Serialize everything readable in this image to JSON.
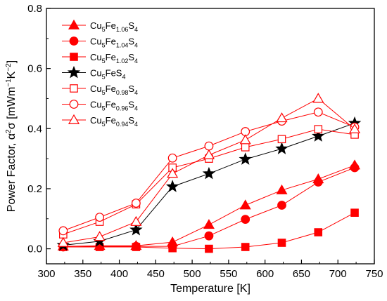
{
  "chart_data": {
    "type": "line",
    "xlabel": "Temperature [K]",
    "ylabel_parts": {
      "main": "Power Factor, α",
      "exp1": "2",
      "mid": "σ [mWm",
      "exp2": "−1",
      "k": "K",
      "exp3": "−2",
      "end": "]"
    },
    "xlim": [
      300,
      750
    ],
    "ylim": [
      -0.05,
      0.8
    ],
    "xticks": [
      300,
      350,
      400,
      450,
      500,
      550,
      600,
      650,
      700,
      750
    ],
    "xtick_labels": [
      "300",
      "350",
      "400",
      "450",
      "500",
      "550",
      "600",
      "650",
      "700",
      "750"
    ],
    "yticks": [
      0.0,
      0.2,
      0.4,
      0.6,
      0.8
    ],
    "ytick_labels": [
      "0.0",
      "0.2",
      "0.4",
      "0.6",
      "0.8"
    ],
    "grid": false,
    "legend_position": "top-left",
    "x": [
      323,
      373,
      423,
      473,
      523,
      573,
      623,
      673,
      723
    ],
    "series": [
      {
        "name_base": "Cu",
        "name_sub1": "5",
        "name_mid": "Fe",
        "name_sub2": "1.06",
        "name_tail": "S",
        "name_sub3": "4",
        "marker": "triangle",
        "filled": true,
        "color": "#ff0000",
        "values": [
          0.008,
          0.01,
          0.01,
          0.022,
          0.08,
          0.145,
          0.195,
          0.232,
          0.278
        ]
      },
      {
        "name_base": "Cu",
        "name_sub1": "5",
        "name_mid": "Fe",
        "name_sub2": "1.04",
        "name_tail": "S",
        "name_sub3": "4",
        "marker": "circle",
        "filled": true,
        "color": "#ff0000",
        "values": [
          0.006,
          0.008,
          0.008,
          0.008,
          0.043,
          0.098,
          0.145,
          0.222,
          0.27
        ]
      },
      {
        "name_base": "Cu",
        "name_sub1": "5",
        "name_mid": "Fe",
        "name_sub2": "1.02",
        "name_tail": "S",
        "name_sub3": "4",
        "marker": "square",
        "filled": true,
        "color": "#ff0000",
        "values": [
          0.006,
          0.006,
          0.006,
          0.002,
          0.0,
          0.006,
          0.02,
          0.055,
          0.12
        ]
      },
      {
        "name_base": "Cu",
        "name_sub1": "5",
        "name_mid": "FeS",
        "name_sub2": "",
        "name_tail": "",
        "name_sub3": "4",
        "marker": "star",
        "filled": true,
        "color": "#000000",
        "values": [
          0.012,
          0.025,
          0.063,
          0.207,
          0.25,
          0.298,
          0.333,
          0.375,
          0.418
        ]
      },
      {
        "name_base": "Cu",
        "name_sub1": "5",
        "name_mid": "Fe",
        "name_sub2": "0.98",
        "name_tail": "S",
        "name_sub3": "4",
        "marker": "square",
        "filled": false,
        "color": "#ff0000",
        "values": [
          0.048,
          0.09,
          0.148,
          0.27,
          0.3,
          0.338,
          0.365,
          0.398,
          0.38
        ]
      },
      {
        "name_base": "Cu",
        "name_sub1": "5",
        "name_mid": "Fe",
        "name_sub2": "0.96",
        "name_tail": "S",
        "name_sub3": "4",
        "marker": "circle",
        "filled": false,
        "color": "#ff0000",
        "values": [
          0.06,
          0.105,
          0.152,
          0.302,
          0.342,
          0.39,
          0.425,
          0.455,
          0.405
        ]
      },
      {
        "name_base": "Cu",
        "name_sub1": "5",
        "name_mid": "Fe",
        "name_sub2": "0.94",
        "name_tail": "S",
        "name_sub3": "4",
        "marker": "triangle",
        "filled": false,
        "color": "#ff0000",
        "values": [
          0.02,
          0.04,
          0.09,
          0.25,
          0.312,
          0.362,
          0.435,
          0.5,
          0.398
        ]
      }
    ]
  }
}
